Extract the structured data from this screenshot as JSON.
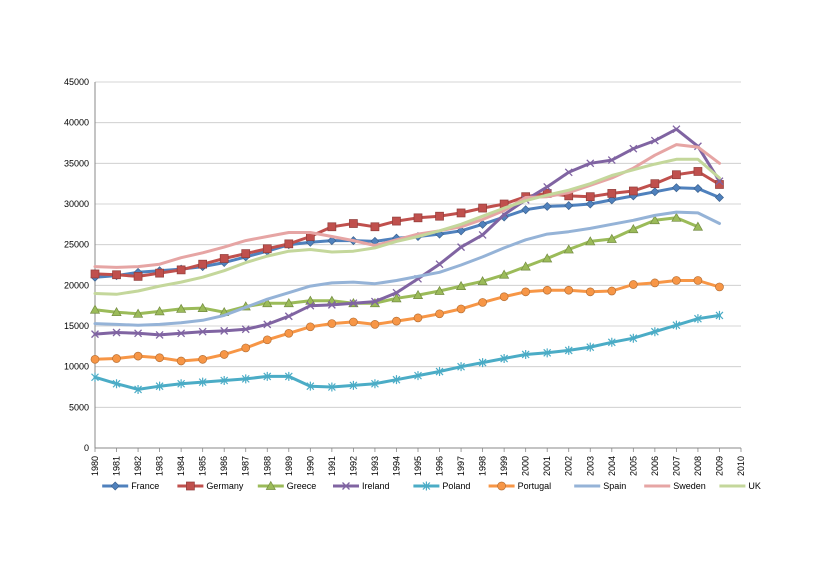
{
  "chart_data": {
    "type": "line",
    "title": "",
    "xlabel": "",
    "ylabel": "",
    "ylim": [
      0,
      45000
    ],
    "ytick_step": 5000,
    "xlim": [
      1980,
      2010
    ],
    "grid": true,
    "legend_position": "bottom",
    "x": [
      1980,
      1981,
      1982,
      1983,
      1984,
      1985,
      1986,
      1987,
      1988,
      1989,
      1990,
      1991,
      1992,
      1993,
      1994,
      1995,
      1996,
      1997,
      1998,
      1999,
      2000,
      2001,
      2002,
      2003,
      2004,
      2005,
      2006,
      2007,
      2008,
      2009
    ],
    "series": [
      {
        "name": "France",
        "color": "#4f81bd",
        "marker": "diamond",
        "values": [
          21000,
          21200,
          21600,
          21800,
          22000,
          22300,
          22800,
          23500,
          24200,
          25000,
          25300,
          25500,
          25500,
          25400,
          25800,
          26000,
          26300,
          26700,
          27500,
          28400,
          29300,
          29700,
          29800,
          30000,
          30500,
          31000,
          31500,
          32000,
          31900,
          30800
        ]
      },
      {
        "name": "Germany",
        "color": "#c0504d",
        "marker": "square",
        "values": [
          21400,
          21300,
          21100,
          21500,
          21900,
          22600,
          23300,
          23900,
          24500,
          25100,
          26000,
          27200,
          27600,
          27200,
          27900,
          28300,
          28500,
          28900,
          29500,
          30000,
          30900,
          31300,
          31000,
          30900,
          31300,
          31600,
          32500,
          33600,
          34000,
          32400
        ]
      },
      {
        "name": "Greece",
        "color": "#9bbb59",
        "marker": "triangle",
        "values": [
          17000,
          16700,
          16500,
          16800,
          17100,
          17200,
          16700,
          17400,
          17800,
          17800,
          18100,
          18100,
          17800,
          17800,
          18400,
          18800,
          19300,
          19900,
          20500,
          21300,
          22300,
          23300,
          24400,
          25400,
          25700,
          26900,
          28000,
          28300,
          27200,
          null
        ]
      },
      {
        "name": "Ireland",
        "color": "#8064a2",
        "marker": "x",
        "values": [
          14000,
          14200,
          14100,
          13900,
          14100,
          14300,
          14400,
          14600,
          15200,
          16200,
          17500,
          17600,
          17800,
          18000,
          19100,
          20800,
          22600,
          24700,
          26200,
          28700,
          30500,
          32100,
          33900,
          35000,
          35400,
          36800,
          37800,
          39200,
          37100,
          32800
        ]
      },
      {
        "name": "Poland",
        "color": "#4bacc6",
        "marker": "star",
        "values": [
          8700,
          7900,
          7200,
          7600,
          7900,
          8100,
          8300,
          8500,
          8800,
          8800,
          7600,
          7500,
          7700,
          7900,
          8400,
          8900,
          9400,
          10000,
          10500,
          11000,
          11500,
          11700,
          12000,
          12400,
          13000,
          13500,
          14300,
          15100,
          15900,
          16300
        ]
      },
      {
        "name": "Portugal",
        "color": "#f79646",
        "marker": "circle",
        "values": [
          10900,
          11000,
          11300,
          11100,
          10700,
          10900,
          11500,
          12300,
          13300,
          14100,
          14900,
          15300,
          15500,
          15200,
          15600,
          16000,
          16500,
          17100,
          17900,
          18600,
          19200,
          19400,
          19400,
          19200,
          19300,
          20100,
          20300,
          20600,
          20600,
          19800
        ]
      },
      {
        "name": "Spain",
        "color": "#95b3d7",
        "marker": "line",
        "values": [
          15300,
          15200,
          15100,
          15200,
          15400,
          15700,
          16300,
          17300,
          18300,
          19100,
          19900,
          20300,
          20400,
          20200,
          20600,
          21100,
          21600,
          22500,
          23500,
          24600,
          25600,
          26300,
          26600,
          27000,
          27500,
          28000,
          28600,
          29000,
          28900,
          27600
        ]
      },
      {
        "name": "Sweden",
        "color": "#e6a5a4",
        "marker": "line",
        "values": [
          22300,
          22200,
          22300,
          22600,
          23400,
          24000,
          24700,
          25500,
          26000,
          26500,
          26500,
          26000,
          25500,
          24900,
          25600,
          26300,
          26700,
          27200,
          28100,
          29200,
          30800,
          30900,
          31400,
          32300,
          33200,
          34400,
          36000,
          37300,
          37000,
          35000
        ]
      },
      {
        "name": "UK",
        "color": "#c4d79b",
        "marker": "line",
        "values": [
          19000,
          18900,
          19300,
          19900,
          20400,
          21000,
          21800,
          22800,
          23600,
          24200,
          24400,
          24100,
          24200,
          24600,
          25400,
          26000,
          26700,
          27500,
          28500,
          29500,
          30400,
          31100,
          31700,
          32500,
          33500,
          34200,
          34900,
          35500,
          35500,
          33200
        ]
      }
    ]
  }
}
